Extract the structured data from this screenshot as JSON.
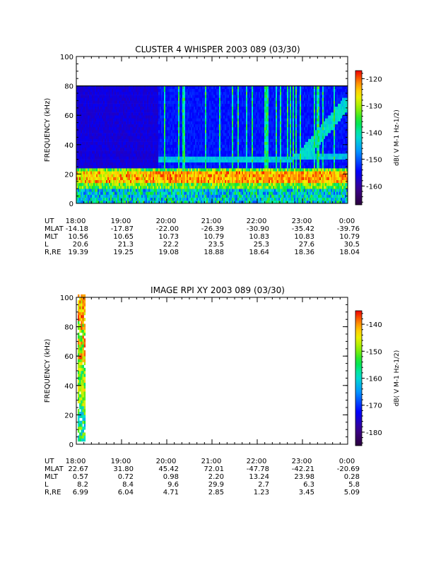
{
  "chart_data": [
    {
      "type": "heatmap",
      "title": "CLUSTER 4 WHISPER 2003 089 (03/30)",
      "ylabel": "FREQUENCY (kHz)",
      "ylim": [
        0,
        100
      ],
      "yticks": [
        0,
        20,
        40,
        60,
        80,
        100
      ],
      "xlim": [
        "18:00",
        "0:00"
      ],
      "data_top_khz": 80,
      "colorbar": {
        "label": "dB( V M-1 Hz-1/2)",
        "ticks": [
          -120,
          -130,
          -140,
          -150,
          -160
        ],
        "range": [
          -167,
          -117
        ]
      },
      "ephemeris": {
        "rows": [
          {
            "label": "UT",
            "values": [
              "18:00",
              "19:00",
              "20:00",
              "21:00",
              "22:00",
              "23:00",
              "0:00"
            ]
          },
          {
            "label": "MLAT",
            "values": [
              "-14.18",
              "-17.87",
              "-22.00",
              "-26.39",
              "-30.90",
              "-35.42",
              "-39.76"
            ]
          },
          {
            "label": "MLT",
            "values": [
              "10.56",
              "10.65",
              "10.73",
              "10.79",
              "10.83",
              "10.83",
              "10.79"
            ]
          },
          {
            "label": "L",
            "values": [
              "20.6",
              "21.3",
              "22.2",
              "23.5",
              "25.3",
              "27.6",
              "30.5"
            ]
          },
          {
            "label": "R,RE",
            "values": [
              "19.39",
              "19.25",
              "19.08",
              "18.88",
              "18.64",
              "18.36",
              "18.04"
            ]
          }
        ]
      }
    },
    {
      "type": "heatmap",
      "title": "IMAGE RPI XY 2003 089 (03/30)",
      "ylabel": "FREQUENCY (kHz)",
      "ylim": [
        0,
        100
      ],
      "yticks": [
        0,
        20,
        40,
        60,
        80,
        100
      ],
      "xlim": [
        "18:00",
        "0:00"
      ],
      "data_time_window": [
        "18:00",
        "18:12"
      ],
      "colorbar": {
        "label": "dB( V M-1 Hz-1/2)",
        "ticks": [
          -140,
          -150,
          -160,
          -170,
          -180
        ],
        "range": [
          -185,
          -135
        ]
      },
      "ephemeris": {
        "rows": [
          {
            "label": "UT",
            "values": [
              "18:00",
              "19:00",
              "20:00",
              "21:00",
              "22:00",
              "23:00",
              "0:00"
            ]
          },
          {
            "label": "MLAT",
            "values": [
              "22.67",
              "31.80",
              "45.42",
              "72.01",
              "-47.78",
              "-42.21",
              "-20.69"
            ]
          },
          {
            "label": "MLT",
            "values": [
              "0.57",
              "0.72",
              "0.98",
              "2.20",
              "13.24",
              "23.98",
              "0.28"
            ]
          },
          {
            "label": "L",
            "values": [
              "8.2",
              "8.4",
              "9.6",
              "29.9",
              "2.7",
              "6.3",
              "5.8"
            ]
          },
          {
            "label": "R,RE",
            "values": [
              "6.99",
              "6.04",
              "4.71",
              "2.85",
              "1.23",
              "3.45",
              "5.09"
            ]
          }
        ]
      }
    }
  ]
}
